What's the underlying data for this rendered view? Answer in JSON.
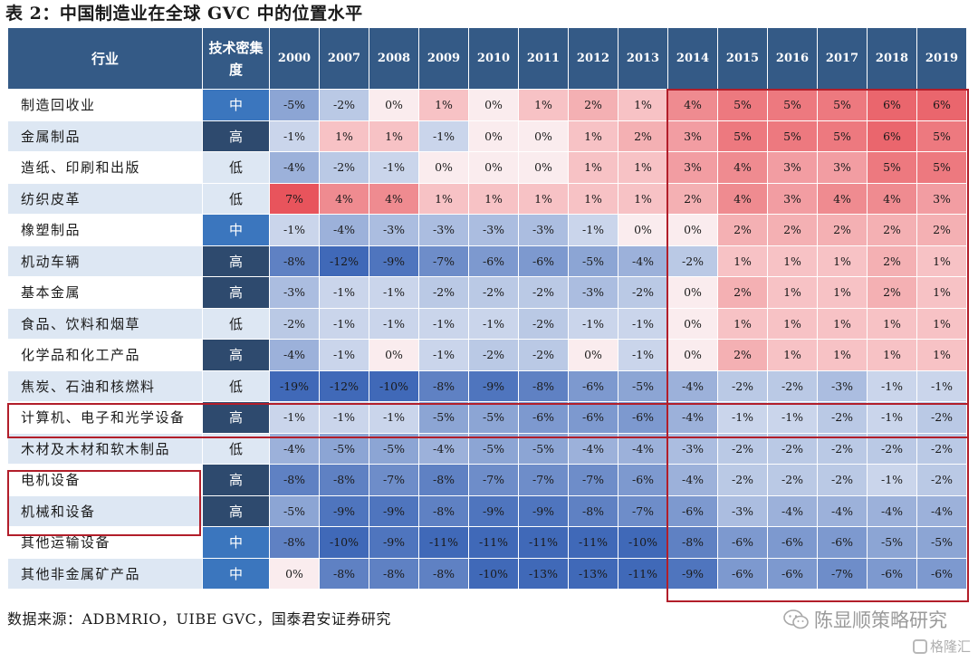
{
  "title": "表 2：中国制造业在全球 GVC 中的位置水平",
  "header": {
    "industry": "行业",
    "intensity": "技术密集度",
    "years": [
      "2000",
      "2007",
      "2008",
      "2009",
      "2010",
      "2011",
      "2012",
      "2013",
      "2014",
      "2015",
      "2016",
      "2017",
      "2018",
      "2019"
    ]
  },
  "rows": [
    {
      "name": "制造回收业",
      "intensity": "中",
      "values": [
        -5,
        -2,
        0,
        1,
        0,
        1,
        2,
        1,
        4,
        5,
        5,
        5,
        6,
        6
      ]
    },
    {
      "name": "金属制品",
      "intensity": "高",
      "values": [
        -1,
        1,
        1,
        -1,
        0,
        0,
        1,
        2,
        3,
        5,
        5,
        5,
        6,
        5
      ]
    },
    {
      "name": "造纸、印刷和出版",
      "intensity": "低",
      "values": [
        -4,
        -2,
        -1,
        0,
        0,
        0,
        1,
        1,
        3,
        4,
        3,
        3,
        5,
        5
      ]
    },
    {
      "name": "纺织皮革",
      "intensity": "低",
      "values": [
        7,
        4,
        4,
        1,
        1,
        1,
        1,
        1,
        2,
        4,
        3,
        4,
        4,
        3
      ]
    },
    {
      "name": "橡塑制品",
      "intensity": "中",
      "values": [
        -1,
        -4,
        -3,
        -3,
        -3,
        -3,
        -1,
        0,
        0,
        2,
        2,
        2,
        2,
        2
      ]
    },
    {
      "name": "机动车辆",
      "intensity": "高",
      "values": [
        -8,
        -12,
        -9,
        -7,
        -6,
        -6,
        -5,
        -4,
        -2,
        1,
        1,
        1,
        2,
        1
      ]
    },
    {
      "name": "基本金属",
      "intensity": "高",
      "values": [
        -3,
        -1,
        -1,
        -2,
        -2,
        -2,
        -3,
        -2,
        0,
        2,
        1,
        1,
        2,
        1
      ]
    },
    {
      "name": "食品、饮料和烟草",
      "intensity": "低",
      "values": [
        -2,
        -1,
        -1,
        -1,
        -1,
        -2,
        -1,
        -1,
        0,
        1,
        1,
        1,
        1,
        1
      ]
    },
    {
      "name": "化学品和化工产品",
      "intensity": "高",
      "values": [
        -4,
        -1,
        0,
        -1,
        -2,
        -2,
        0,
        -1,
        0,
        2,
        1,
        1,
        1,
        1
      ]
    },
    {
      "name": "焦炭、石油和核燃料",
      "intensity": "低",
      "values": [
        -19,
        -12,
        -10,
        -8,
        -9,
        -8,
        -6,
        -5,
        -4,
        -2,
        -2,
        -3,
        -1,
        -1
      ]
    },
    {
      "name": "计算机、电子和光学设备",
      "intensity": "高",
      "values": [
        -1,
        -1,
        -1,
        -5,
        -5,
        -6,
        -6,
        -6,
        -4,
        -1,
        -1,
        -2,
        -1,
        -2
      ]
    },
    {
      "name": "木材及木材和软木制品",
      "intensity": "低",
      "values": [
        -4,
        -5,
        -5,
        -4,
        -5,
        -5,
        -4,
        -4,
        -3,
        -2,
        -2,
        -2,
        -2,
        -2
      ]
    },
    {
      "name": "电机设备",
      "intensity": "高",
      "values": [
        -8,
        -8,
        -7,
        -8,
        -7,
        -7,
        -7,
        -6,
        -4,
        -2,
        -2,
        -2,
        -1,
        -2
      ]
    },
    {
      "name": "机械和设备",
      "intensity": "高",
      "values": [
        -5,
        -9,
        -9,
        -8,
        -9,
        -9,
        -8,
        -7,
        -6,
        -3,
        -4,
        -4,
        -4,
        -4
      ]
    },
    {
      "name": "其他运输设备",
      "intensity": "中",
      "values": [
        -8,
        -10,
        -9,
        -11,
        -11,
        -11,
        -11,
        -10,
        -8,
        -6,
        -6,
        -6,
        -5,
        -5
      ]
    },
    {
      "name": "其他非金属矿产品",
      "intensity": "中",
      "values": [
        0,
        -8,
        -8,
        -8,
        -10,
        -13,
        -13,
        -11,
        -9,
        -6,
        -6,
        -7,
        -6,
        -6
      ]
    }
  ],
  "intensity_colors": {
    "高": "#2e4a6e",
    "中": "#3b76be",
    "低": "#dde7f3"
  },
  "accent_color": "#b21e2a",
  "source": "数据来源：ADBMRIO，UIBE GVC，国泰君安证券研究",
  "watermark": "陈显顺策略研究",
  "watermark_icon": "wechat-icon",
  "watermark2": "格隆汇",
  "watermark2_icon": "gelonghui-icon"
}
